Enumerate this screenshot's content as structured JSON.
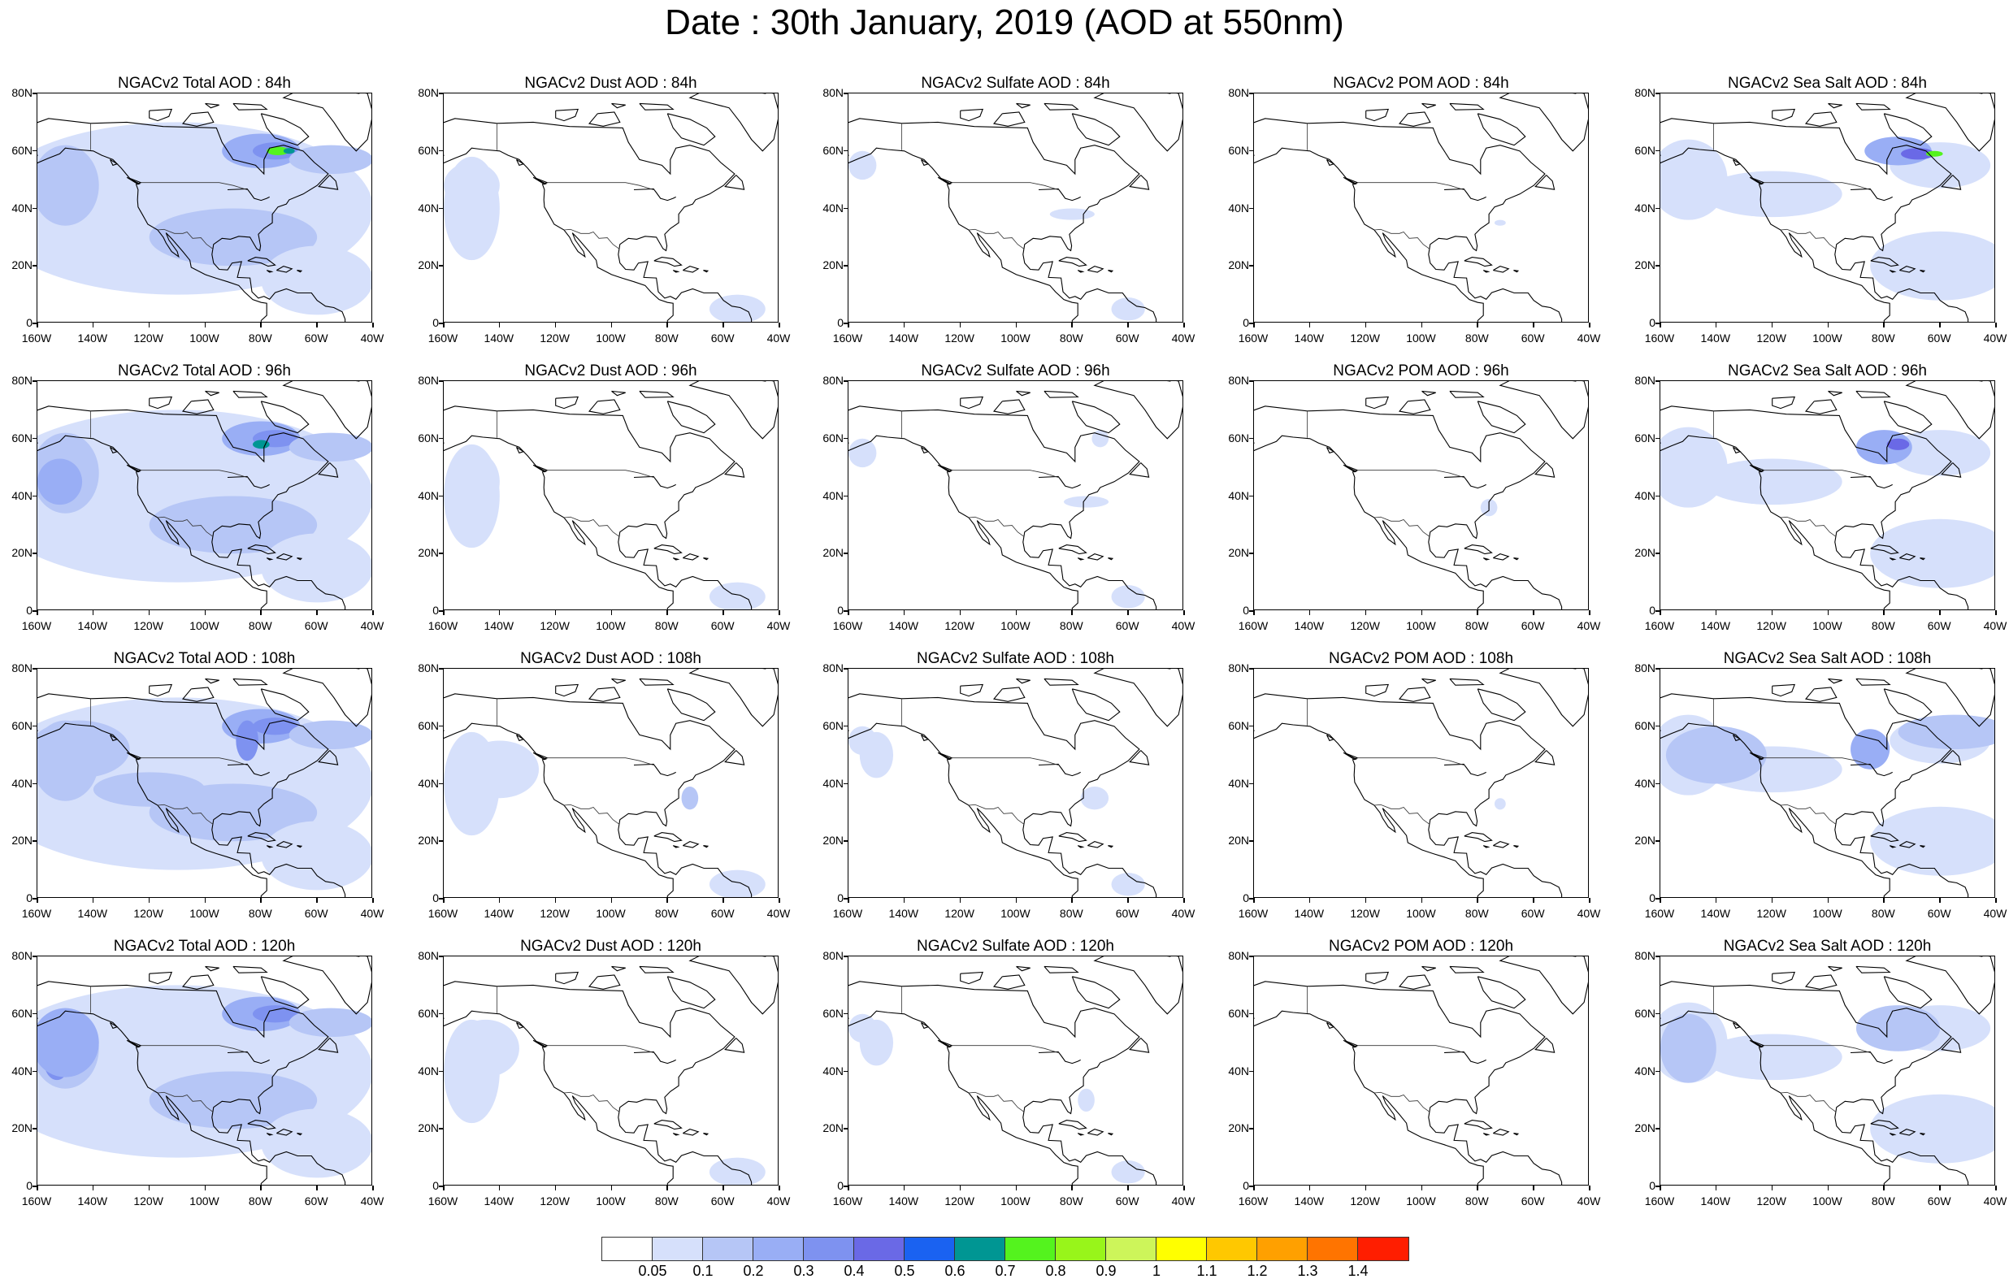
{
  "figure_title": "Date : 30th January, 2019 (AOD at 550nm)",
  "panels": [
    {
      "title": "NGACv2 Total AOD : 84h",
      "species": "total",
      "lead": 84
    },
    {
      "title": "NGACv2 Dust AOD : 84h",
      "species": "dust",
      "lead": 84
    },
    {
      "title": "NGACv2 Sulfate AOD : 84h",
      "species": "sulfate",
      "lead": 84
    },
    {
      "title": "NGACv2 POM AOD : 84h",
      "species": "pom",
      "lead": 84
    },
    {
      "title": "NGACv2 Sea Salt AOD : 84h",
      "species": "seasalt",
      "lead": 84
    },
    {
      "title": "NGACv2 Total AOD : 96h",
      "species": "total",
      "lead": 96
    },
    {
      "title": "NGACv2 Dust AOD : 96h",
      "species": "dust",
      "lead": 96
    },
    {
      "title": "NGACv2 Sulfate AOD : 96h",
      "species": "sulfate",
      "lead": 96
    },
    {
      "title": "NGACv2 POM AOD : 96h",
      "species": "pom",
      "lead": 96
    },
    {
      "title": "NGACv2 Sea Salt AOD : 96h",
      "species": "seasalt",
      "lead": 96
    },
    {
      "title": "NGACv2 Total AOD : 108h",
      "species": "total",
      "lead": 108
    },
    {
      "title": "NGACv2 Dust AOD : 108h",
      "species": "dust",
      "lead": 108
    },
    {
      "title": "NGACv2 Sulfate AOD : 108h",
      "species": "sulfate",
      "lead": 108
    },
    {
      "title": "NGACv2 POM AOD : 108h",
      "species": "pom",
      "lead": 108
    },
    {
      "title": "NGACv2 Sea Salt AOD : 108h",
      "species": "seasalt",
      "lead": 108
    },
    {
      "title": "NGACv2 Total AOD : 120h",
      "species": "total",
      "lead": 120
    },
    {
      "title": "NGACv2 Dust AOD : 120h",
      "species": "dust",
      "lead": 120
    },
    {
      "title": "NGACv2 Sulfate AOD : 120h",
      "species": "sulfate",
      "lead": 120
    },
    {
      "title": "NGACv2 POM AOD : 120h",
      "species": "pom",
      "lead": 120
    },
    {
      "title": "NGACv2 Sea Salt  AOD : 120h",
      "species": "seasalt",
      "lead": 120
    }
  ],
  "axes": {
    "lat_labels": [
      "80N",
      "60N",
      "40N",
      "20N",
      "0"
    ],
    "lat_values": [
      80,
      60,
      40,
      20,
      0
    ],
    "lon_labels": [
      "160W",
      "140W",
      "120W",
      "100W",
      "80W",
      "60W",
      "40W"
    ],
    "lon_values": [
      -160,
      -140,
      -120,
      -100,
      -80,
      -60,
      -40
    ],
    "lon_range": [
      -160,
      -40
    ],
    "lat_range": [
      0,
      80
    ]
  },
  "colorbar": {
    "levels": [
      "0.05",
      "0.1",
      "0.2",
      "0.3",
      "0.4",
      "0.5",
      "0.6",
      "0.7",
      "0.8",
      "0.9",
      "1",
      "1.1",
      "1.2",
      "1.3",
      "1.4"
    ],
    "colors": [
      "#ffffff",
      "#d6e0fb",
      "#b6c6f6",
      "#99aef5",
      "#7e92f0",
      "#6a69e6",
      "#1a62f1",
      "#009693",
      "#54f31e",
      "#98f51a",
      "#cdf55a",
      "#ffff00",
      "#ffc800",
      "#ffa000",
      "#ff7400",
      "#ff1e00"
    ]
  },
  "colors": {
    "land_line": "#000000",
    "background": "#ffffff"
  }
}
